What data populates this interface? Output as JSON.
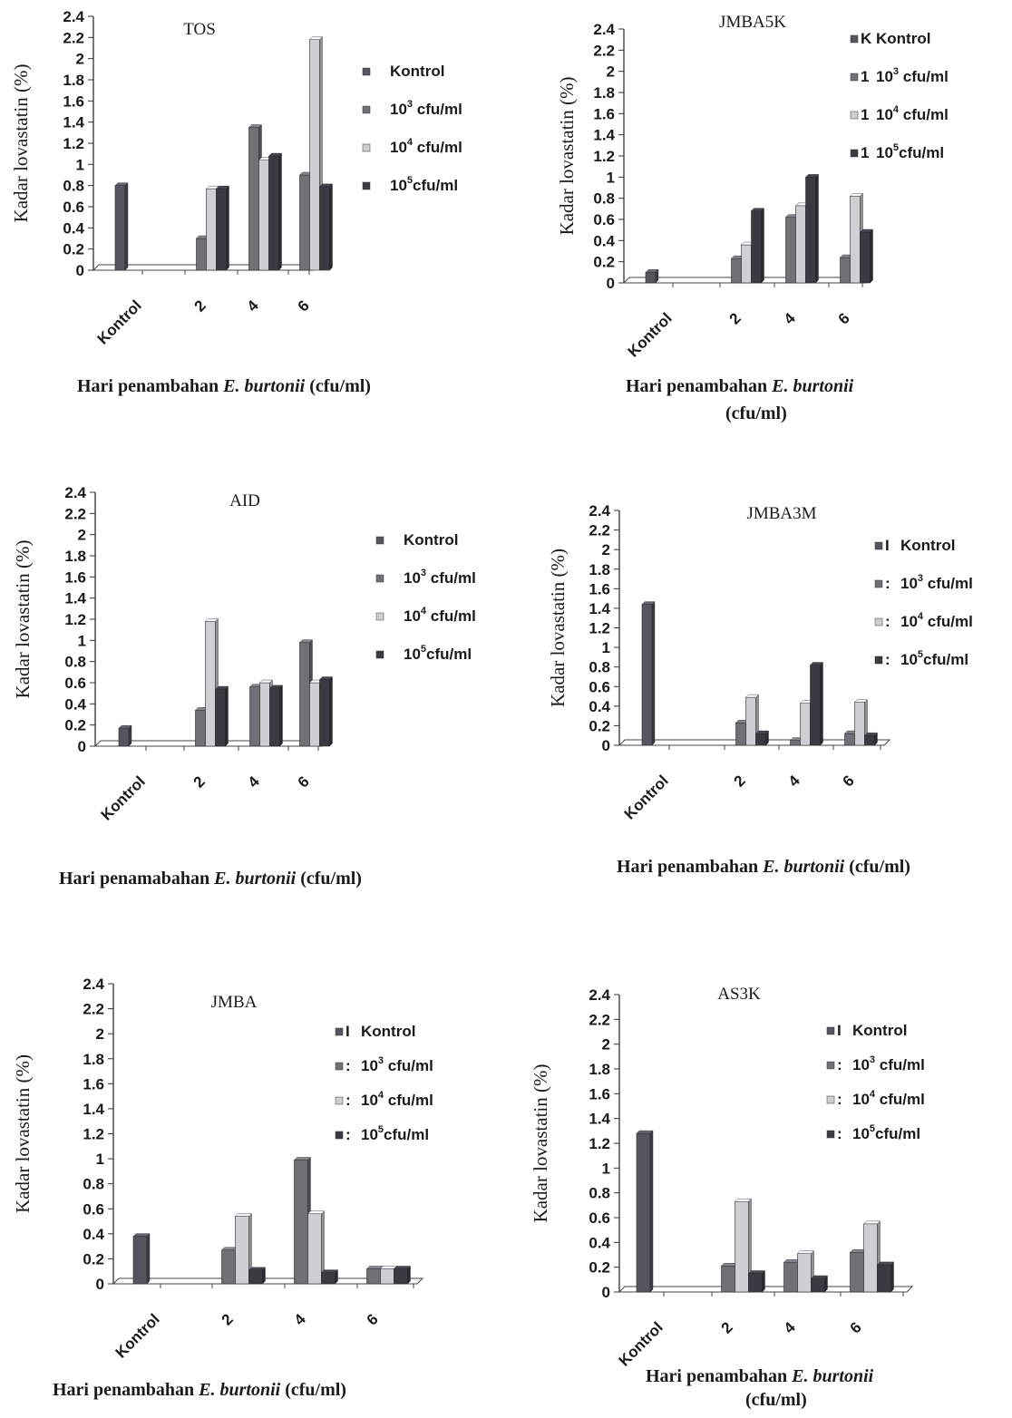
{
  "colors": {
    "kontrol": "#55555f",
    "s1e3": "#707077",
    "s1e4": "#cfcfd3",
    "s1e5": "#3a3a42"
  },
  "chart_data": [
    {
      "type": "bar",
      "title": "TOS",
      "ylabel": "Kadar lovastatin (%)",
      "xlabel": "Hari penambahan E. burtonii (cfu/ml)",
      "xlabel_lines": [
        "Hari penambahan ",
        "E. burtonii",
        " (cfu/ml)"
      ],
      "categories": [
        "Kontrol",
        "2",
        "4",
        "6"
      ],
      "ylim": [
        0,
        2.4
      ],
      "yticks": [
        "0",
        "0.2",
        "0.4",
        "0.6",
        "0.8",
        "1",
        "1.2",
        "1.4",
        "1.6",
        "1.8",
        "2",
        "2.2",
        "2.4"
      ],
      "legend": [
        "Kontrol",
        "10",
        "cfu/ml",
        "10",
        "cfu/ml",
        "10",
        "cfu/ml"
      ],
      "legend_sup": [
        "3",
        "4",
        "5"
      ],
      "series": [
        {
          "name": "Kontrol",
          "values": [
            0.8,
            0,
            0,
            0
          ]
        },
        {
          "name": "10³ cfu/ml",
          "values": [
            0,
            0.3,
            1.35,
            0.9
          ]
        },
        {
          "name": "10⁴ cfu/ml",
          "values": [
            0,
            0.77,
            1.04,
            2.18
          ]
        },
        {
          "name": "10⁵cfu/ml",
          "values": [
            0,
            0.77,
            1.08,
            0.79
          ]
        }
      ]
    },
    {
      "type": "bar",
      "title": "JMBA5K",
      "ylabel": "Kadar lovastatin (%)",
      "xlabel": "Hari penambahan E. burtonii (cfu/ml)",
      "categories": [
        "Kontrol",
        "2",
        "4",
        "6"
      ],
      "ylim": [
        0,
        2.4
      ],
      "legend_markers": [
        "K",
        "1",
        "1",
        "1"
      ],
      "series": [
        {
          "name": "Kontrol",
          "values": [
            0.1,
            0,
            0,
            0
          ]
        },
        {
          "name": "10³ cfu/ml",
          "values": [
            0,
            0.23,
            0.62,
            0.24
          ]
        },
        {
          "name": "10⁴ cfu/ml",
          "values": [
            0,
            0.36,
            0.73,
            0.82
          ]
        },
        {
          "name": "10⁵cfu/ml",
          "values": [
            0,
            0.68,
            1.0,
            0.48
          ]
        }
      ]
    },
    {
      "type": "bar",
      "title": "AID",
      "ylabel": "Kadar lovastatin (%)",
      "xlabel": "Hari penamabahan E. burtonii (cfu/ml)",
      "categories": [
        "Kontrol",
        "2",
        "4",
        "6"
      ],
      "ylim": [
        0,
        2.4
      ],
      "series": [
        {
          "name": "Kontrol",
          "values": [
            0.17,
            0,
            0,
            0
          ]
        },
        {
          "name": "10³ cfu/ml",
          "values": [
            0,
            0.34,
            0.56,
            0.98
          ]
        },
        {
          "name": "10⁴ cfu/ml",
          "values": [
            0,
            1.18,
            0.6,
            0.6
          ]
        },
        {
          "name": "10⁵cfu/ml",
          "values": [
            0,
            0.54,
            0.55,
            0.63
          ]
        }
      ]
    },
    {
      "type": "bar",
      "title": "JMBA3M",
      "ylabel": "Kadar lovastatin (%)",
      "xlabel": "Hari penambahan E. burtonii (cfu/ml)",
      "categories": [
        "Kontrol",
        "2",
        "4",
        "6"
      ],
      "ylim": [
        0,
        2.4
      ],
      "legend_markers": [
        "I",
        ":",
        ":",
        ":"
      ],
      "series": [
        {
          "name": "Kontrol",
          "values": [
            1.44,
            0,
            0,
            0
          ]
        },
        {
          "name": "10³ cfu/ml",
          "values": [
            0,
            0.23,
            0.05,
            0.12
          ]
        },
        {
          "name": "10⁴ cfu/ml",
          "values": [
            0,
            0.49,
            0.43,
            0.44
          ]
        },
        {
          "name": "10⁵cfu/ml",
          "values": [
            0,
            0.12,
            0.82,
            0.1
          ]
        }
      ]
    },
    {
      "type": "bar",
      "title": "JMBA",
      "ylabel": "Kadar lovastatin (%)",
      "xlabel": "Hari penambahan E. burtonii (cfu/ml)",
      "categories": [
        "Kontrol",
        "2",
        "4",
        "6"
      ],
      "ylim": [
        0,
        2.4
      ],
      "legend_markers": [
        "I",
        ":",
        ":",
        ":"
      ],
      "series": [
        {
          "name": "Kontrol",
          "values": [
            0.38,
            0,
            0,
            0
          ]
        },
        {
          "name": "10³ cfu/ml",
          "values": [
            0,
            0.27,
            0.99,
            0.12
          ]
        },
        {
          "name": "10⁴ cfu/ml",
          "values": [
            0,
            0.54,
            0.56,
            0.12
          ]
        },
        {
          "name": "10⁵cfu/ml",
          "values": [
            0,
            0.11,
            0.09,
            0.12
          ]
        }
      ]
    },
    {
      "type": "bar",
      "title": "AS3K",
      "ylabel": "Kadar lovastatin (%)",
      "xlabel": "Hari penambahan E. burtonii (cfu/ml)",
      "categories": [
        "Kontrol",
        "2",
        "4",
        "6"
      ],
      "ylim": [
        0,
        2.4
      ],
      "legend_markers": [
        "I",
        ":",
        ":",
        ":"
      ],
      "series": [
        {
          "name": "Kontrol",
          "values": [
            1.28,
            0,
            0,
            0
          ]
        },
        {
          "name": "10³ cfu/ml",
          "values": [
            0,
            0.21,
            0.24,
            0.32
          ]
        },
        {
          "name": "10⁴ cfu/ml",
          "values": [
            0,
            0.73,
            0.31,
            0.55
          ]
        },
        {
          "name": "10⁵cfu/ml",
          "values": [
            0,
            0.15,
            0.11,
            0.22
          ]
        }
      ]
    }
  ]
}
